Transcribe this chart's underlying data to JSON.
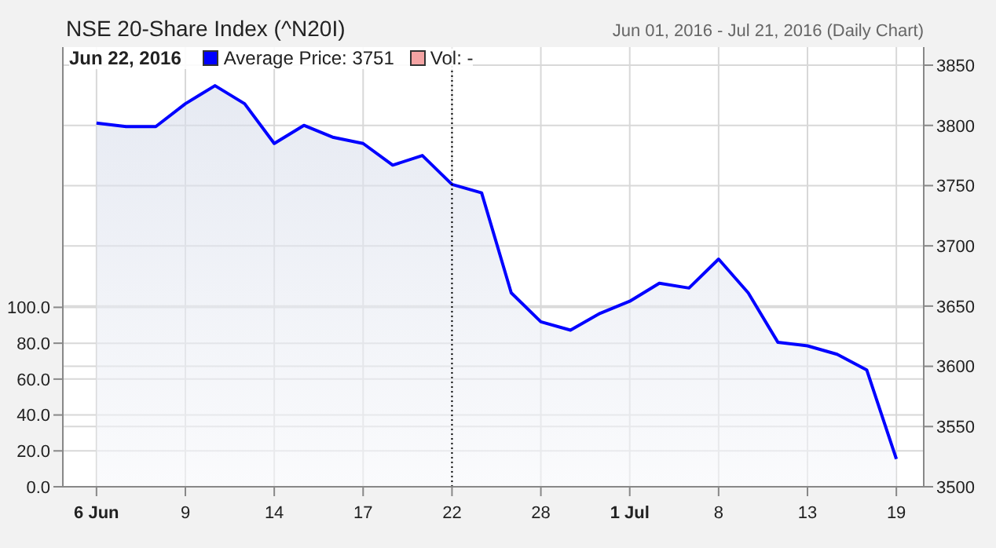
{
  "chart_data": {
    "type": "area",
    "title": "NSE 20-Share Index (^N20I)",
    "subtitle": "Jun 01, 2016 - Jul 21, 2016 (Daily Chart)",
    "annotations": [
      "Jun 22, 2016"
    ],
    "categories": [
      "6 Jun",
      null,
      null,
      "9",
      null,
      null,
      "14",
      null,
      null,
      "17",
      null,
      null,
      "22",
      null,
      null,
      "28",
      null,
      null,
      "1 Jul",
      null,
      null,
      "8",
      null,
      null,
      "13",
      null,
      null,
      "19"
    ],
    "series": [
      {
        "name": "Average Price: 3751",
        "color": "#0000ff",
        "values": [
          3802,
          3799,
          3799,
          3818,
          3833,
          3818,
          3785,
          3800,
          3790,
          3785,
          3767,
          3775,
          3751,
          3744,
          3661,
          3637,
          3630,
          3644,
          3654,
          3669,
          3665,
          3689,
          3661,
          3620,
          3617,
          3610,
          3597,
          3523
        ]
      },
      {
        "name": "Vol: -",
        "color": "#f4a4a4",
        "type": "bar",
        "values": [
          null,
          null,
          null,
          null,
          null,
          null,
          null,
          null,
          null,
          null,
          null,
          null,
          null,
          null,
          null,
          null,
          null,
          null,
          null,
          null,
          null,
          null,
          null,
          null,
          null,
          null,
          null,
          null
        ]
      }
    ],
    "ylim": [
      3500,
      3865
    ],
    "yticks": [
      3500,
      3550,
      3600,
      3650,
      3700,
      3750,
      3800,
      3850
    ],
    "y2lim": [
      0,
      245
    ],
    "y2ticks": [
      {
        "value": 0,
        "label": "0.0"
      },
      {
        "value": 20,
        "label": "20.0"
      },
      {
        "value": 40,
        "label": "40.0"
      },
      {
        "value": 60,
        "label": "60.0"
      },
      {
        "value": 80,
        "label": "80.0"
      },
      {
        "value": 100,
        "label": "100.0"
      }
    ],
    "ref_lines": [
      {
        "axis": "x",
        "value": "22",
        "line_style": "dotted",
        "color": "#000000"
      }
    ],
    "grid": true,
    "legend": "top left"
  }
}
